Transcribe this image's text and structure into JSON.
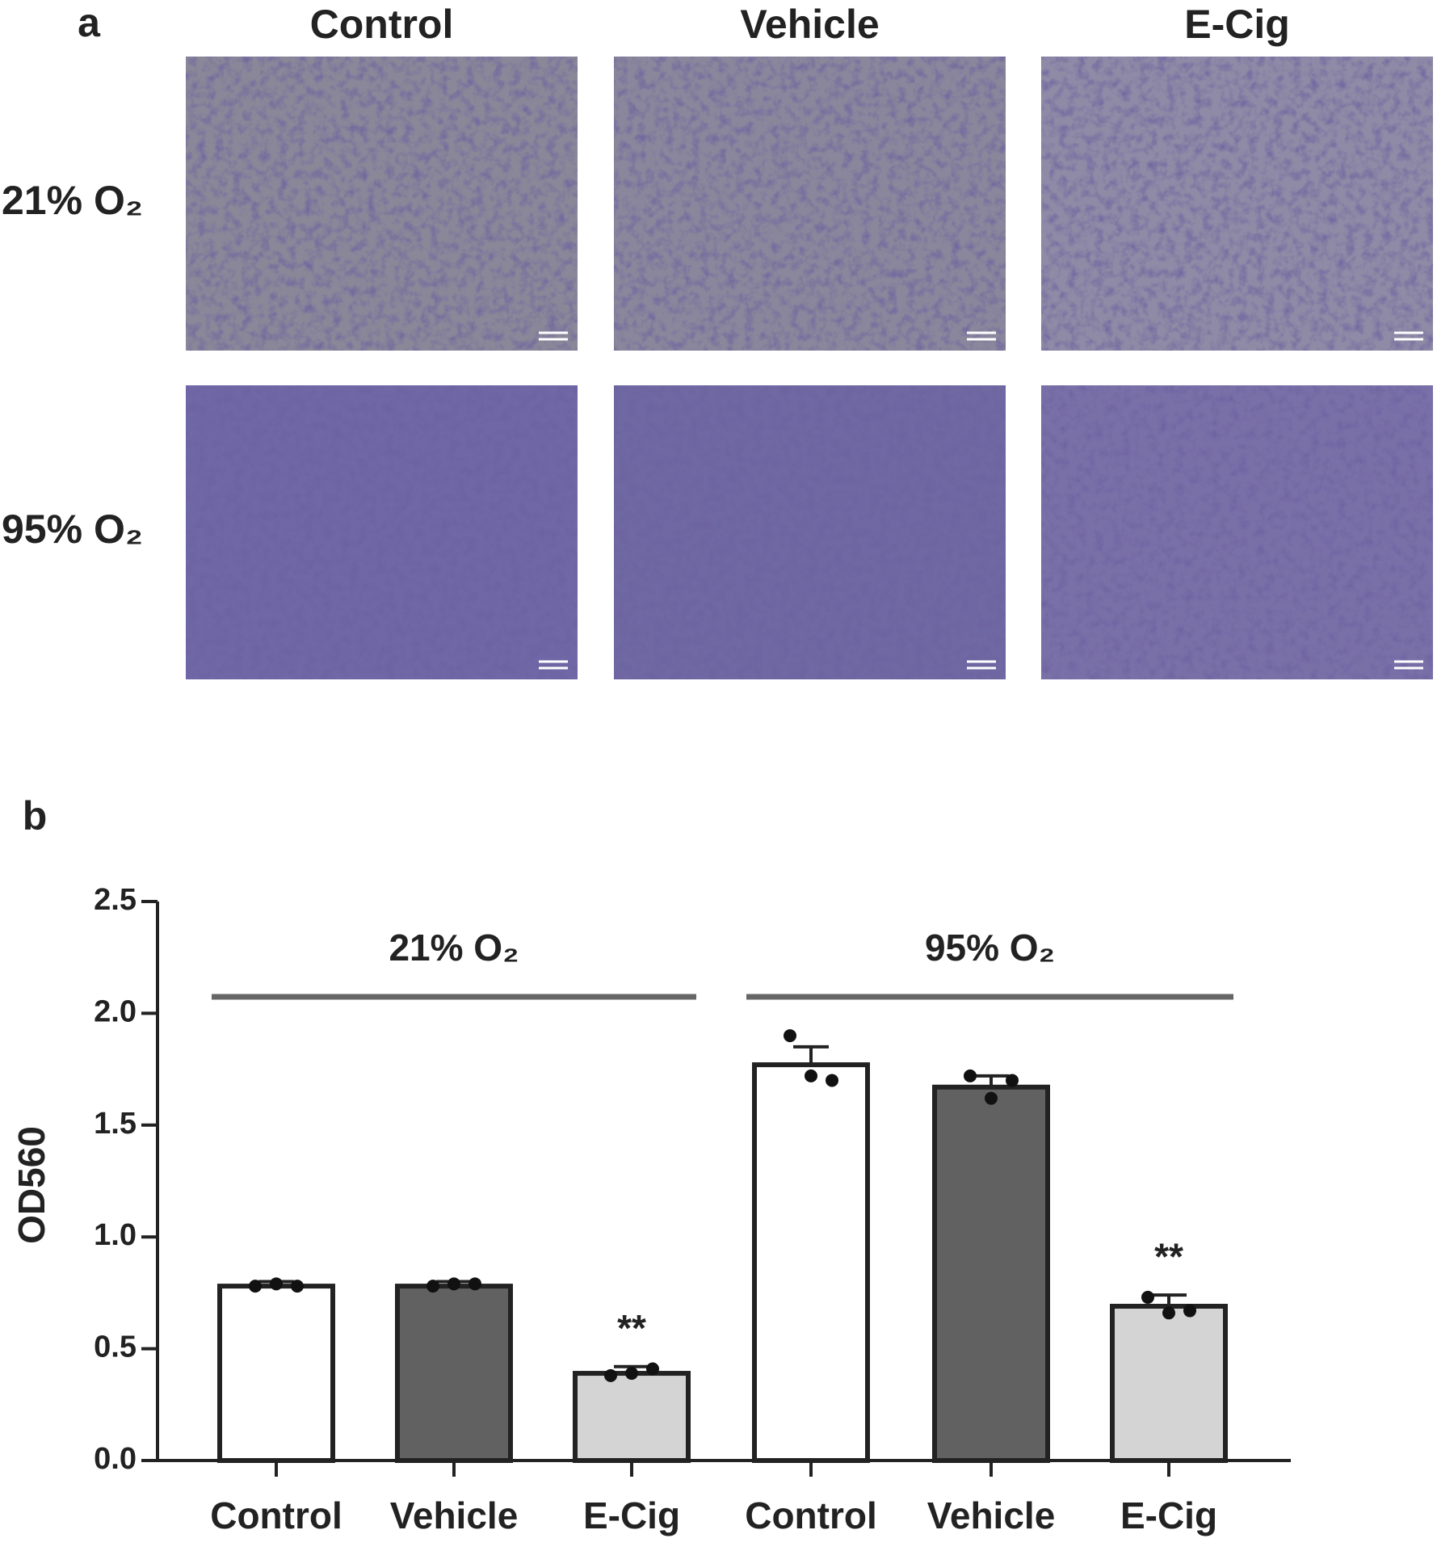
{
  "panel_a": {
    "label": "a",
    "columns": [
      "Control",
      "Vehicle",
      "E-Cig"
    ],
    "rows": [
      "21% O₂",
      "95% O₂"
    ]
  },
  "panel_b": {
    "label": "b"
  },
  "chart_data": {
    "type": "bar",
    "ylabel": "OD560",
    "categories": [
      "Control",
      "Vehicle",
      "E-Cig",
      "Control",
      "Vehicle",
      "E-Cig"
    ],
    "groups": [
      "21% O₂",
      "95% O₂"
    ],
    "values": [
      0.78,
      0.78,
      0.39,
      1.77,
      1.67,
      0.69
    ],
    "errors": [
      0.02,
      0.02,
      0.03,
      0.08,
      0.05,
      0.05
    ],
    "points": [
      [
        0.78,
        0.79,
        0.78
      ],
      [
        0.78,
        0.79,
        0.79
      ],
      [
        0.38,
        0.39,
        0.41
      ],
      [
        1.9,
        1.72,
        1.7
      ],
      [
        1.72,
        1.62,
        1.7
      ],
      [
        0.73,
        0.66,
        0.67
      ]
    ],
    "colors": [
      "#ffffff",
      "#616161",
      "#d4d4d4",
      "#ffffff",
      "#616161",
      "#d4d4d4"
    ],
    "significance": [
      null,
      null,
      "**",
      null,
      null,
      "**"
    ],
    "ylim": [
      0,
      2.5
    ],
    "yticks": [
      {
        "value": 0,
        "label": "0.0"
      },
      0.5,
      {
        "value": 1,
        "label": "1.0"
      },
      1.5,
      {
        "value": 2,
        "label": "2.0"
      },
      2.5
    ]
  }
}
